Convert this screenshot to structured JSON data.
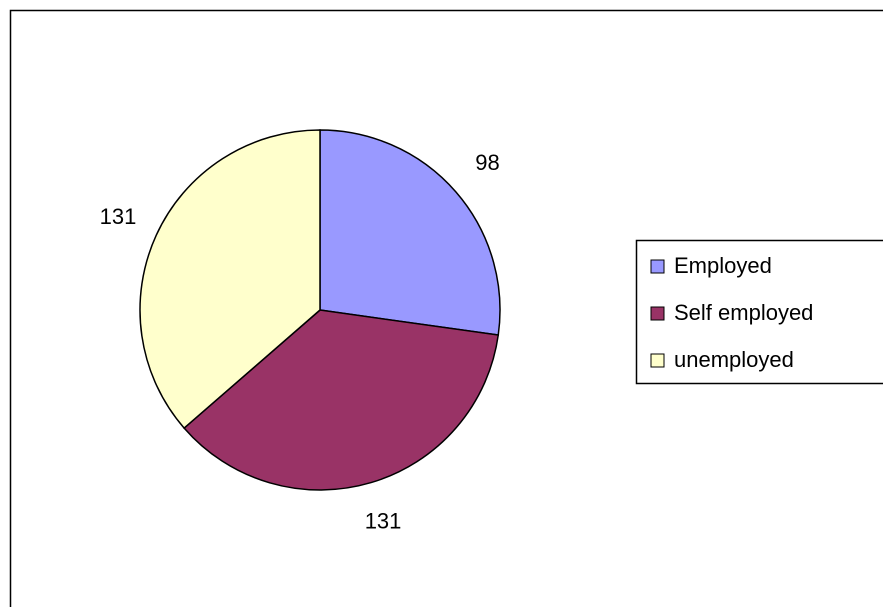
{
  "chart_data": {
    "type": "pie",
    "categories": [
      "Employed",
      "Self employed",
      "unemployed"
    ],
    "values": [
      98,
      131,
      131
    ],
    "colors": [
      "#9999ff",
      "#993366",
      "#ffffcc"
    ],
    "legend": "right"
  }
}
